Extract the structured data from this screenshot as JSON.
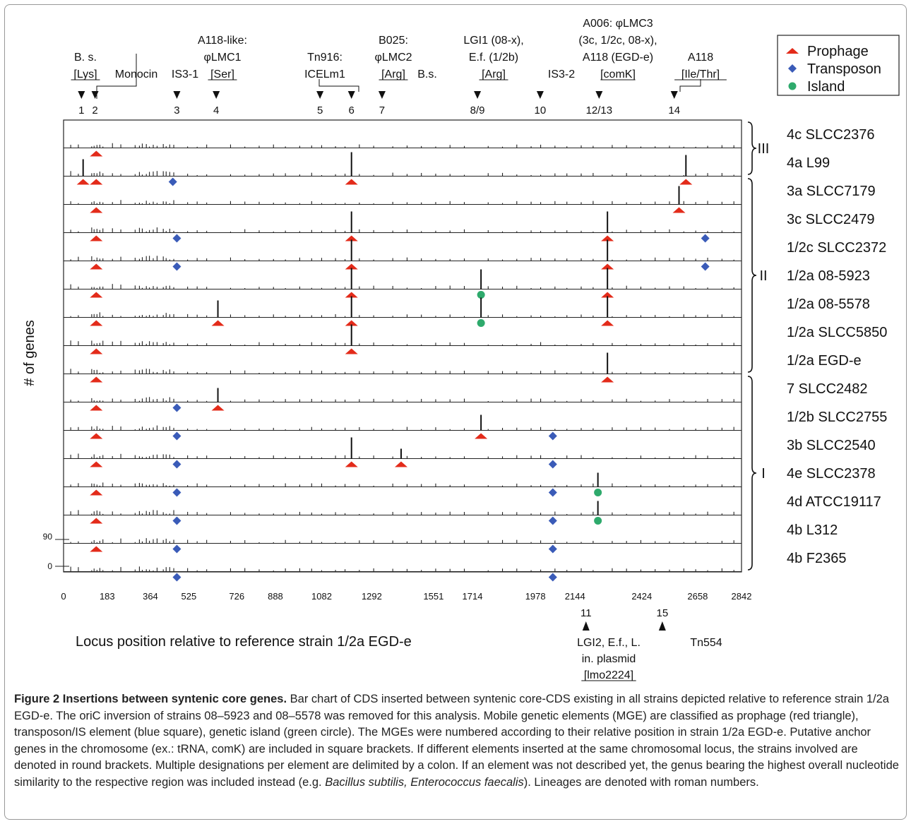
{
  "chart_data": {
    "type": "bar",
    "xlabel": "Locus position relative to reference strain 1/2a EGD-e",
    "ylabel": "# of genes",
    "xlim": [
      0,
      2842
    ],
    "x_ticks": [
      0,
      183,
      364,
      525,
      726,
      888,
      1082,
      1292,
      1551,
      1714,
      1978,
      2144,
      2424,
      2658,
      2842
    ],
    "y_ticks": [
      "90",
      "0"
    ],
    "legend": {
      "position": "top-right",
      "items": [
        {
          "label": "Prophage",
          "marker": "triangle",
          "color": "#e32b1a"
        },
        {
          "label": "Transposon",
          "marker": "diamond",
          "color": "#3a5bb8"
        },
        {
          "label": "Island",
          "marker": "circle",
          "color": "#2eaa6c"
        }
      ]
    },
    "lineages": [
      {
        "label": "III",
        "from": 0,
        "to": 1
      },
      {
        "label": "II",
        "from": 2,
        "to": 8
      },
      {
        "label": "I",
        "from": 9,
        "to": 15
      }
    ],
    "strains": [
      {
        "name": "4c SLCC2376",
        "peaks": [],
        "markers": [
          {
            "x": 137,
            "type": "P"
          }
        ]
      },
      {
        "name": "4a L99",
        "peaks": [
          {
            "x": 82,
            "h": 24
          },
          {
            "x": 1207,
            "h": 34
          },
          {
            "x": 2609,
            "h": 30
          }
        ],
        "markers": [
          {
            "x": 82,
            "type": "P"
          },
          {
            "x": 137,
            "type": "P"
          },
          {
            "x": 458,
            "type": "T"
          },
          {
            "x": 1207,
            "type": "P"
          },
          {
            "x": 2609,
            "type": "P"
          }
        ]
      },
      {
        "name": "3a SLCC7179",
        "peaks": [
          {
            "x": 2580,
            "h": 26
          }
        ],
        "markers": [
          {
            "x": 137,
            "type": "P"
          },
          {
            "x": 2580,
            "type": "P"
          }
        ]
      },
      {
        "name": "3c SLCC2479",
        "peaks": [
          {
            "x": 1207,
            "h": 30
          },
          {
            "x": 2280,
            "h": 30
          }
        ],
        "markers": [
          {
            "x": 137,
            "type": "P"
          },
          {
            "x": 475,
            "type": "T"
          },
          {
            "x": 1207,
            "type": "P"
          },
          {
            "x": 2280,
            "type": "P"
          },
          {
            "x": 2690,
            "type": "T"
          }
        ]
      },
      {
        "name": "1/2c SLCC2372",
        "peaks": [
          {
            "x": 1207,
            "h": 30
          },
          {
            "x": 2280,
            "h": 30
          }
        ],
        "markers": [
          {
            "x": 137,
            "type": "P"
          },
          {
            "x": 475,
            "type": "T"
          },
          {
            "x": 1207,
            "type": "P"
          },
          {
            "x": 2280,
            "type": "P"
          },
          {
            "x": 2690,
            "type": "T"
          }
        ]
      },
      {
        "name": "1/2a 08-5923",
        "peaks": [
          {
            "x": 1207,
            "h": 30
          },
          {
            "x": 1750,
            "h": 28
          },
          {
            "x": 2280,
            "h": 30
          }
        ],
        "markers": [
          {
            "x": 137,
            "type": "P"
          },
          {
            "x": 1207,
            "type": "P"
          },
          {
            "x": 1750,
            "type": "I"
          },
          {
            "x": 2280,
            "type": "P"
          }
        ]
      },
      {
        "name": "1/2a 08-5578",
        "peaks": [
          {
            "x": 647,
            "h": 24
          },
          {
            "x": 1207,
            "h": 30
          },
          {
            "x": 1750,
            "h": 28
          },
          {
            "x": 2280,
            "h": 30
          }
        ],
        "markers": [
          {
            "x": 137,
            "type": "P"
          },
          {
            "x": 647,
            "type": "P"
          },
          {
            "x": 1207,
            "type": "P"
          },
          {
            "x": 1750,
            "type": "I"
          },
          {
            "x": 2280,
            "type": "P"
          }
        ]
      },
      {
        "name": "1/2a SLCC5850",
        "peaks": [
          {
            "x": 1207,
            "h": 30
          }
        ],
        "markers": [
          {
            "x": 137,
            "type": "P"
          },
          {
            "x": 1207,
            "type": "P"
          }
        ]
      },
      {
        "name": "1/2a EGD-e",
        "peaks": [
          {
            "x": 2280,
            "h": 30
          }
        ],
        "markers": [
          {
            "x": 137,
            "type": "P"
          },
          {
            "x": 2280,
            "type": "P"
          }
        ]
      },
      {
        "name": "7 SLCC2482",
        "peaks": [
          {
            "x": 647,
            "h": 20
          }
        ],
        "markers": [
          {
            "x": 137,
            "type": "P"
          },
          {
            "x": 475,
            "type": "T"
          },
          {
            "x": 647,
            "type": "P"
          }
        ]
      },
      {
        "name": "1/2b SLCC2755",
        "peaks": [
          {
            "x": 1750,
            "h": 22
          }
        ],
        "markers": [
          {
            "x": 137,
            "type": "P"
          },
          {
            "x": 475,
            "type": "T"
          },
          {
            "x": 1750,
            "type": "P"
          },
          {
            "x": 2051,
            "type": "T"
          }
        ]
      },
      {
        "name": "3b SLCC2540",
        "peaks": [
          {
            "x": 1207,
            "h": 30
          },
          {
            "x": 1415,
            "h": 14
          }
        ],
        "markers": [
          {
            "x": 137,
            "type": "P"
          },
          {
            "x": 475,
            "type": "T"
          },
          {
            "x": 1207,
            "type": "P"
          },
          {
            "x": 1415,
            "type": "P"
          },
          {
            "x": 2051,
            "type": "T"
          }
        ]
      },
      {
        "name": "4e SLCC2378",
        "peaks": [
          {
            "x": 2240,
            "h": 20
          }
        ],
        "markers": [
          {
            "x": 137,
            "type": "P"
          },
          {
            "x": 475,
            "type": "T"
          },
          {
            "x": 2051,
            "type": "T"
          },
          {
            "x": 2240,
            "type": "I"
          }
        ]
      },
      {
        "name": "4d ATCC19117",
        "peaks": [
          {
            "x": 2240,
            "h": 20
          }
        ],
        "markers": [
          {
            "x": 137,
            "type": "P"
          },
          {
            "x": 475,
            "type": "T"
          },
          {
            "x": 2051,
            "type": "T"
          },
          {
            "x": 2240,
            "type": "I"
          }
        ]
      },
      {
        "name": "4b L312",
        "peaks": [],
        "markers": [
          {
            "x": 137,
            "type": "P"
          },
          {
            "x": 475,
            "type": "T"
          },
          {
            "x": 2051,
            "type": "T"
          }
        ]
      },
      {
        "name": "4b F2365",
        "peaks": [],
        "markers": [
          {
            "x": 475,
            "type": "T"
          },
          {
            "x": 2051,
            "type": "T"
          }
        ]
      }
    ],
    "top_elements": [
      {
        "num": "1",
        "x": 75,
        "lines": [
          "B. s.",
          "[Lys]"
        ],
        "u": 1
      },
      {
        "num": "2",
        "x": 132,
        "lines": [
          "Monocin"
        ],
        "u": -1
      },
      {
        "num": "3",
        "x": 475,
        "lines": [
          "IS3-1"
        ],
        "u": -1
      },
      {
        "num": "4",
        "x": 640,
        "lines": [
          "A118-like:",
          "φLMC1",
          "[Ser]"
        ],
        "u": 2
      },
      {
        "num": "5",
        "x": 1075,
        "lines": [
          "Tn916:",
          "ICELm1"
        ],
        "u": -1
      },
      {
        "num": "6",
        "x": 1207,
        "lines": [
          "B025:",
          "φLMC2",
          "[Arg]"
        ],
        "u": 2
      },
      {
        "num": "7",
        "x": 1335,
        "lines": [
          "B.s."
        ],
        "u": -1
      },
      {
        "num": "8/9",
        "x": 1735,
        "lines": [
          "LGI1   (08-x),",
          "E.f.   (1/2b)",
          "[Arg]"
        ],
        "u": 2
      },
      {
        "num": "10",
        "x": 1998,
        "lines": [
          "IS3-2"
        ],
        "u": -1
      },
      {
        "num": "12/13",
        "x": 2245,
        "lines": [
          "A006:  φLMC3",
          "(3c, 1/2c, 08-x),",
          "A118  (EGD-e)",
          "[comK]"
        ],
        "u": 3
      },
      {
        "num": "14",
        "x": 2560,
        "lines": [
          "A118",
          "[Ile/Thr]"
        ],
        "u": 1
      }
    ],
    "bottom_elements": [
      {
        "num": "11",
        "x": 2190,
        "lines": [
          "LGI2,     E.f., L.",
          "in.  plasmid",
          "[lmo2224]"
        ],
        "u": 2
      },
      {
        "num": "15",
        "x": 2510,
        "lines": [
          "Tn554"
        ],
        "u": -1
      }
    ]
  },
  "caption": {
    "title": "Figure 2 Insertions between syntenic core genes.",
    "p1": "Bar chart of CDS inserted between syntenic core-CDS existing in all strains depicted relative to reference strain 1/2a EGD-e. The oriC inversion of strains 08–5923 and 08–5578 was removed for this analysis. Mobile genetic elements (MGE) are classified as prophage (red triangle), transposon/IS element (blue square), genetic island (green circle). The MGEs were numbered according to their relative position in strain 1/2a EGD-e. Putative anchor genes in the chromosome (ex.: tRNA, comK) are included in square brackets. If different elements inserted at the same chromosomal locus, the strains involved are denoted in round brackets. Multiple designations per element are delimited by a colon. If an element was not described yet, the genus bearing the highest overall nucleotide similarity to the respective region was included instead (e.g. ",
    "ital1": "Bacillus subtilis, Enterococcus faecalis",
    "p2": "). Lineages are denoted with roman numbers."
  }
}
